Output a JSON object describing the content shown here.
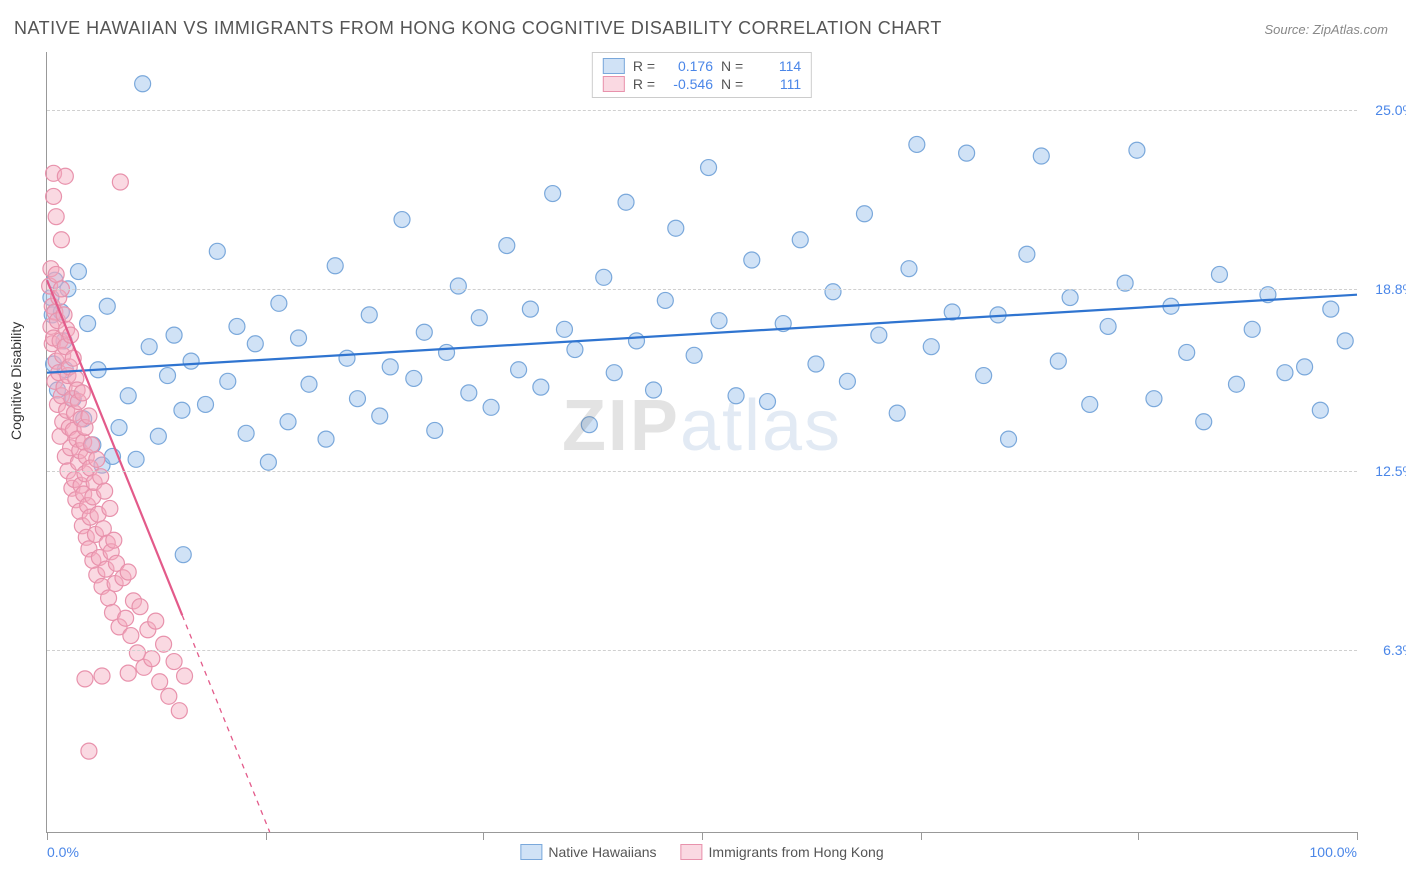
{
  "title": "NATIVE HAWAIIAN VS IMMIGRANTS FROM HONG KONG COGNITIVE DISABILITY CORRELATION CHART",
  "source": "Source: ZipAtlas.com",
  "ylabel": "Cognitive Disability",
  "watermark": {
    "part1": "ZIP",
    "part2": "atlas"
  },
  "chart": {
    "type": "scatter",
    "background_color": "#ffffff",
    "grid_color": "#d0d0d0",
    "axis_color": "#999999",
    "label_color": "#4a86e8",
    "text_color": "#555555",
    "title_fontsize": 18,
    "label_fontsize": 14,
    "xlim": [
      0,
      100
    ],
    "ylim": [
      0,
      27
    ],
    "x_ticks": [
      0,
      16.7,
      33.3,
      50,
      66.7,
      83.3,
      100
    ],
    "x_tick_labels": [
      "0.0%",
      "",
      "",
      "",
      "",
      "",
      "100.0%"
    ],
    "y_gridlines": [
      6.3,
      12.5,
      18.8,
      25.0
    ],
    "y_tick_labels": [
      "6.3%",
      "12.5%",
      "18.8%",
      "25.0%"
    ],
    "marker_radius": 8,
    "marker_stroke_width": 1.2,
    "trend_line_width": 2.2,
    "series": [
      {
        "name": "Native Hawaiians",
        "fill": "rgba(150,190,235,0.45)",
        "stroke": "#7aa8db",
        "trend_color": "#2f74d0",
        "trend": {
          "x1": 0,
          "y1": 15.9,
          "x2": 100,
          "y2": 18.6,
          "dash": false
        },
        "stats": {
          "R": "0.176",
          "N": "114"
        },
        "points": [
          [
            0.3,
            18.5
          ],
          [
            0.4,
            17.9
          ],
          [
            0.5,
            16.2
          ],
          [
            0.6,
            19.1
          ],
          [
            0.8,
            15.3
          ],
          [
            1.1,
            18.0
          ],
          [
            1.3,
            17.0
          ],
          [
            1.4,
            16.0
          ],
          [
            1.6,
            18.8
          ],
          [
            2.0,
            15.0
          ],
          [
            2.4,
            19.4
          ],
          [
            2.8,
            14.3
          ],
          [
            3.1,
            17.6
          ],
          [
            3.5,
            13.4
          ],
          [
            3.9,
            16.0
          ],
          [
            4.2,
            12.7
          ],
          [
            4.6,
            18.2
          ],
          [
            5.0,
            13.0
          ],
          [
            5.5,
            14.0
          ],
          [
            6.2,
            15.1
          ],
          [
            6.8,
            12.9
          ],
          [
            7.3,
            25.9
          ],
          [
            7.8,
            16.8
          ],
          [
            8.5,
            13.7
          ],
          [
            9.2,
            15.8
          ],
          [
            9.7,
            17.2
          ],
          [
            10.3,
            14.6
          ],
          [
            10.4,
            9.6
          ],
          [
            11.0,
            16.3
          ],
          [
            12.1,
            14.8
          ],
          [
            13.0,
            20.1
          ],
          [
            13.8,
            15.6
          ],
          [
            14.5,
            17.5
          ],
          [
            15.2,
            13.8
          ],
          [
            15.9,
            16.9
          ],
          [
            16.9,
            12.8
          ],
          [
            17.7,
            18.3
          ],
          [
            18.4,
            14.2
          ],
          [
            19.2,
            17.1
          ],
          [
            20.0,
            15.5
          ],
          [
            21.3,
            13.6
          ],
          [
            22.0,
            19.6
          ],
          [
            22.9,
            16.4
          ],
          [
            23.7,
            15.0
          ],
          [
            24.6,
            17.9
          ],
          [
            25.4,
            14.4
          ],
          [
            26.2,
            16.1
          ],
          [
            27.1,
            21.2
          ],
          [
            28.0,
            15.7
          ],
          [
            28.8,
            17.3
          ],
          [
            29.6,
            13.9
          ],
          [
            30.5,
            16.6
          ],
          [
            31.4,
            18.9
          ],
          [
            32.2,
            15.2
          ],
          [
            33.0,
            17.8
          ],
          [
            33.9,
            14.7
          ],
          [
            35.1,
            20.3
          ],
          [
            36.0,
            16.0
          ],
          [
            36.9,
            18.1
          ],
          [
            37.7,
            15.4
          ],
          [
            38.6,
            22.1
          ],
          [
            39.5,
            17.4
          ],
          [
            40.3,
            16.7
          ],
          [
            41.4,
            14.1
          ],
          [
            42.5,
            19.2
          ],
          [
            43.3,
            15.9
          ],
          [
            44.2,
            21.8
          ],
          [
            45.0,
            17.0
          ],
          [
            46.3,
            15.3
          ],
          [
            47.2,
            18.4
          ],
          [
            48.0,
            20.9
          ],
          [
            49.4,
            16.5
          ],
          [
            50.5,
            23.0
          ],
          [
            51.3,
            17.7
          ],
          [
            52.6,
            15.1
          ],
          [
            53.8,
            19.8
          ],
          [
            55.0,
            14.9
          ],
          [
            56.2,
            17.6
          ],
          [
            57.5,
            20.5
          ],
          [
            58.7,
            16.2
          ],
          [
            60.0,
            18.7
          ],
          [
            61.1,
            15.6
          ],
          [
            62.4,
            21.4
          ],
          [
            63.5,
            17.2
          ],
          [
            64.9,
            14.5
          ],
          [
            65.8,
            19.5
          ],
          [
            66.4,
            23.8
          ],
          [
            67.5,
            16.8
          ],
          [
            69.1,
            18.0
          ],
          [
            70.2,
            23.5
          ],
          [
            71.5,
            15.8
          ],
          [
            72.6,
            17.9
          ],
          [
            73.4,
            13.6
          ],
          [
            74.8,
            20.0
          ],
          [
            75.9,
            23.4
          ],
          [
            77.2,
            16.3
          ],
          [
            78.1,
            18.5
          ],
          [
            79.6,
            14.8
          ],
          [
            81.0,
            17.5
          ],
          [
            82.3,
            19.0
          ],
          [
            83.2,
            23.6
          ],
          [
            84.5,
            15.0
          ],
          [
            85.8,
            18.2
          ],
          [
            87.0,
            16.6
          ],
          [
            88.3,
            14.2
          ],
          [
            89.5,
            19.3
          ],
          [
            90.8,
            15.5
          ],
          [
            92.0,
            17.4
          ],
          [
            93.2,
            18.6
          ],
          [
            94.5,
            15.9
          ],
          [
            96.0,
            16.1
          ],
          [
            97.2,
            14.6
          ],
          [
            98.0,
            18.1
          ],
          [
            99.1,
            17.0
          ]
        ]
      },
      {
        "name": "Immigrants from Hong Kong",
        "fill": "rgba(245,170,190,0.45)",
        "stroke": "#e892ac",
        "trend_color": "#e35a8a",
        "trend": {
          "x1": 0,
          "y1": 19.1,
          "x2": 17,
          "y2": 0,
          "dash_after_y": 7.5
        },
        "stats": {
          "R": "-0.546",
          "N": "111"
        },
        "points": [
          [
            0.2,
            18.9
          ],
          [
            0.3,
            17.5
          ],
          [
            0.3,
            19.5
          ],
          [
            0.4,
            16.9
          ],
          [
            0.4,
            18.2
          ],
          [
            0.5,
            17.1
          ],
          [
            0.5,
            22.8
          ],
          [
            0.6,
            15.6
          ],
          [
            0.6,
            18.0
          ],
          [
            0.7,
            16.3
          ],
          [
            0.7,
            19.3
          ],
          [
            0.8,
            14.8
          ],
          [
            0.8,
            17.7
          ],
          [
            0.9,
            15.9
          ],
          [
            0.9,
            18.5
          ],
          [
            1.0,
            13.7
          ],
          [
            1.0,
            17.0
          ],
          [
            1.1,
            15.1
          ],
          [
            1.1,
            18.8
          ],
          [
            1.2,
            14.2
          ],
          [
            1.2,
            16.5
          ],
          [
            1.3,
            17.9
          ],
          [
            1.3,
            15.4
          ],
          [
            1.4,
            13.0
          ],
          [
            1.4,
            16.8
          ],
          [
            1.5,
            14.6
          ],
          [
            1.5,
            17.4
          ],
          [
            1.6,
            12.5
          ],
          [
            1.6,
            15.8
          ],
          [
            1.7,
            14.0
          ],
          [
            1.7,
            16.1
          ],
          [
            1.8,
            13.3
          ],
          [
            1.8,
            17.2
          ],
          [
            1.9,
            11.9
          ],
          [
            1.9,
            15.0
          ],
          [
            2.0,
            13.9
          ],
          [
            2.0,
            16.4
          ],
          [
            2.1,
            12.2
          ],
          [
            2.1,
            14.5
          ],
          [
            2.2,
            15.7
          ],
          [
            2.2,
            11.5
          ],
          [
            2.3,
            13.6
          ],
          [
            2.3,
            15.3
          ],
          [
            2.4,
            12.8
          ],
          [
            2.4,
            14.9
          ],
          [
            2.5,
            11.1
          ],
          [
            2.5,
            13.2
          ],
          [
            2.6,
            14.3
          ],
          [
            2.6,
            12.0
          ],
          [
            2.7,
            15.2
          ],
          [
            2.7,
            10.6
          ],
          [
            2.8,
            13.5
          ],
          [
            2.8,
            11.7
          ],
          [
            2.9,
            14.0
          ],
          [
            2.9,
            12.4
          ],
          [
            3.0,
            10.2
          ],
          [
            3.0,
            13.0
          ],
          [
            3.1,
            11.3
          ],
          [
            3.2,
            14.4
          ],
          [
            3.2,
            9.8
          ],
          [
            3.3,
            12.6
          ],
          [
            3.3,
            10.9
          ],
          [
            3.4,
            13.4
          ],
          [
            3.5,
            11.6
          ],
          [
            3.5,
            9.4
          ],
          [
            3.6,
            12.1
          ],
          [
            3.7,
            10.3
          ],
          [
            3.8,
            12.9
          ],
          [
            3.8,
            8.9
          ],
          [
            3.9,
            11.0
          ],
          [
            4.0,
            9.5
          ],
          [
            4.1,
            12.3
          ],
          [
            4.2,
            8.5
          ],
          [
            4.3,
            10.5
          ],
          [
            4.4,
            11.8
          ],
          [
            4.5,
            9.1
          ],
          [
            4.6,
            10.0
          ],
          [
            4.7,
            8.1
          ],
          [
            4.8,
            11.2
          ],
          [
            4.9,
            9.7
          ],
          [
            5.0,
            7.6
          ],
          [
            5.1,
            10.1
          ],
          [
            5.2,
            8.6
          ],
          [
            5.3,
            9.3
          ],
          [
            5.5,
            7.1
          ],
          [
            5.6,
            22.5
          ],
          [
            5.8,
            8.8
          ],
          [
            6.0,
            7.4
          ],
          [
            6.2,
            9.0
          ],
          [
            6.4,
            6.8
          ],
          [
            6.6,
            8.0
          ],
          [
            6.9,
            6.2
          ],
          [
            7.1,
            7.8
          ],
          [
            7.4,
            5.7
          ],
          [
            7.7,
            7.0
          ],
          [
            8.0,
            6.0
          ],
          [
            8.3,
            7.3
          ],
          [
            8.6,
            5.2
          ],
          [
            8.9,
            6.5
          ],
          [
            9.3,
            4.7
          ],
          [
            9.7,
            5.9
          ],
          [
            10.1,
            4.2
          ],
          [
            10.5,
            5.4
          ],
          [
            3.2,
            2.8
          ],
          [
            4.2,
            5.4
          ],
          [
            6.2,
            5.5
          ],
          [
            2.9,
            5.3
          ],
          [
            0.5,
            22.0
          ],
          [
            0.7,
            21.3
          ],
          [
            1.1,
            20.5
          ],
          [
            1.4,
            22.7
          ]
        ]
      }
    ]
  },
  "legend_top": {
    "R_label": "R =",
    "N_label": "N ="
  },
  "legend_bottom": [
    {
      "label": "Native Hawaiians",
      "fill": "rgba(150,190,235,0.45)",
      "stroke": "#7aa8db"
    },
    {
      "label": "Immigrants from Hong Kong",
      "fill": "rgba(245,170,190,0.45)",
      "stroke": "#e892ac"
    }
  ]
}
